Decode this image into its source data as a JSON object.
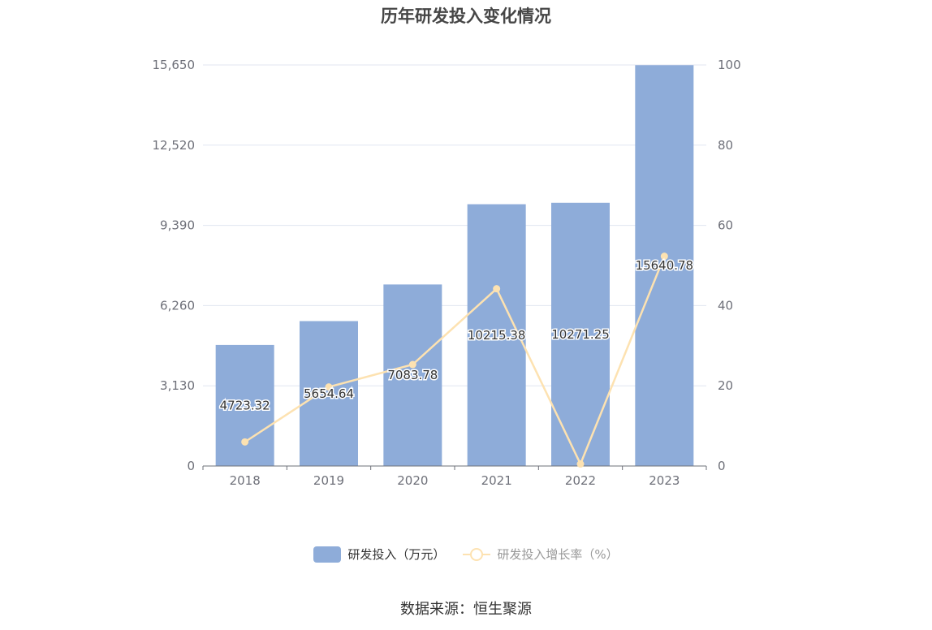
{
  "chart_data": {
    "type": "bar",
    "title": "历年研发投入变化情况",
    "categories": [
      "2018",
      "2019",
      "2020",
      "2021",
      "2022",
      "2023"
    ],
    "series": [
      {
        "name": "研发投入（万元）",
        "type": "bar",
        "axis": "left",
        "color": "#8eacd9",
        "values": [
          4723.32,
          5654.64,
          7083.78,
          10215.38,
          10271.25,
          15640.78
        ],
        "labels": [
          "4723.32",
          "5654.64",
          "7083.78",
          "10215.38",
          "10271.25",
          "15640.78"
        ]
      },
      {
        "name": "研发投入增长率（%）",
        "type": "line",
        "axis": "right",
        "color": "#fde2b1",
        "values": [
          6,
          19.7,
          25.3,
          44.2,
          0.5,
          52.3
        ]
      }
    ],
    "y_left": {
      "min": 0,
      "max": 15650,
      "ticks": [
        "0",
        "3,130",
        "6,260",
        "9,390",
        "12,520",
        "15,650"
      ]
    },
    "y_right": {
      "min": 0,
      "max": 100,
      "ticks": [
        "0",
        "20",
        "40",
        "60",
        "80",
        "100"
      ]
    },
    "grid": true,
    "legend_position": "bottom"
  },
  "source_text": "数据来源：恒生聚源"
}
